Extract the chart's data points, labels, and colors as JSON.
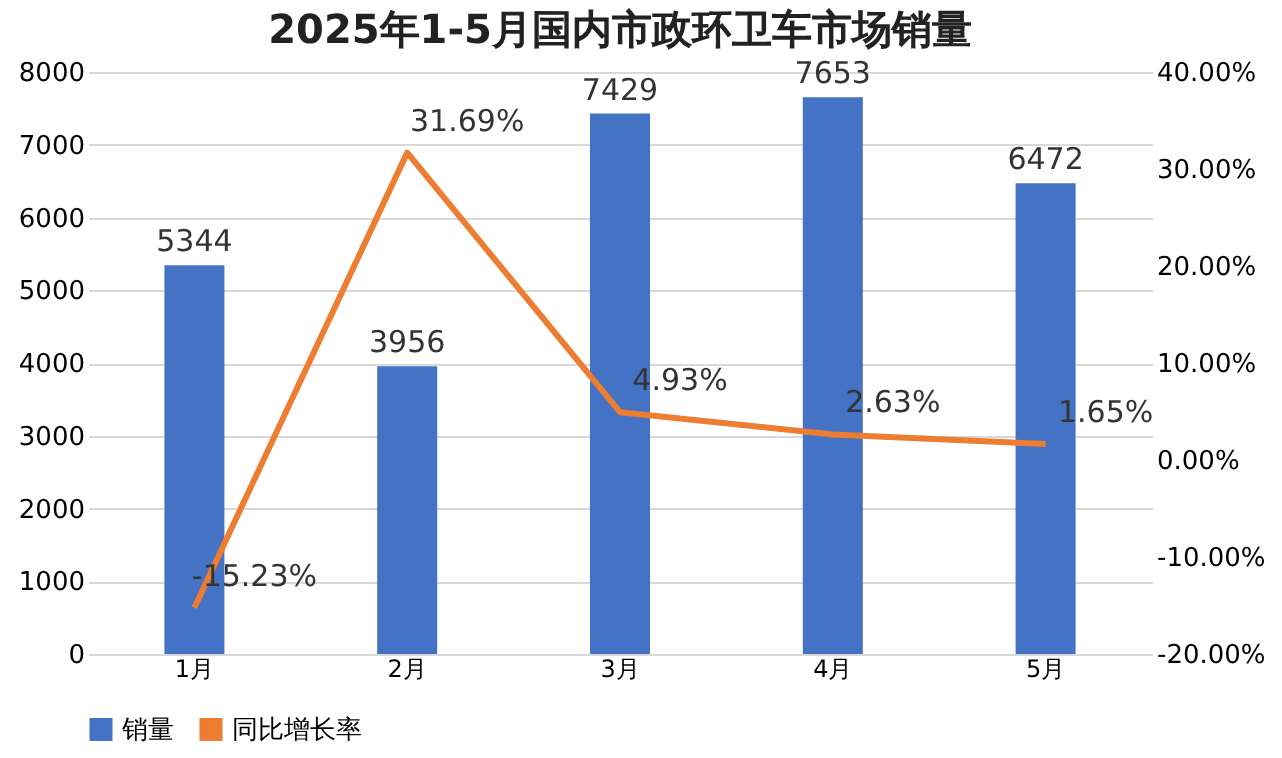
{
  "chart_data": {
    "type": "bar",
    "title": "2025年1-5月国内市政环卫车市场销量",
    "categories": [
      "1月",
      "2月",
      "3月",
      "4月",
      "5月"
    ],
    "series": [
      {
        "name": "销量",
        "color": "#4472c4",
        "values": [
          5344,
          3956,
          7429,
          7653,
          6472
        ],
        "value_labels": [
          "5344",
          "3956",
          "7429",
          "7653",
          "6472"
        ]
      },
      {
        "name": "同比增长率",
        "type": "line",
        "axis": "y2",
        "color": "#ed7d31",
        "values": [
          -15.23,
          31.69,
          4.93,
          2.63,
          1.65
        ],
        "value_labels": [
          "-15.23%",
          "31.69%",
          "4.93%",
          "2.63%",
          "1.65%"
        ]
      }
    ],
    "ylim": [
      0,
      8000
    ],
    "yticks": [
      0,
      1000,
      2000,
      3000,
      4000,
      5000,
      6000,
      7000,
      8000
    ],
    "y2lim": [
      -20,
      40
    ],
    "y2ticks": [
      {
        "value": -20,
        "label": "-20.00%"
      },
      {
        "value": -10,
        "label": "-10.00%"
      },
      {
        "value": 0,
        "label": "0.00%"
      },
      {
        "value": 10,
        "label": "10.00%"
      },
      {
        "value": 20,
        "label": "20.00%"
      },
      {
        "value": 30,
        "label": "30.00%"
      },
      {
        "value": 40,
        "label": "40.00%"
      }
    ],
    "grid": "y",
    "legend": "bottom",
    "marker": "none",
    "line_style": "solid"
  }
}
